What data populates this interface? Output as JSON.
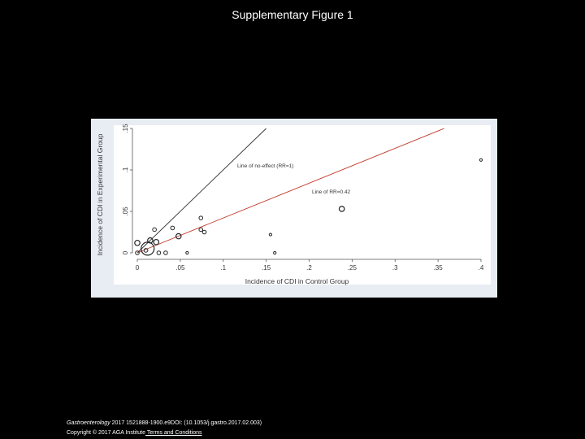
{
  "slide": {
    "title": "Supplementary Figure 1"
  },
  "footer": {
    "journal": "Gastroenterology",
    "citation": " 2017 1521888-1900.e9DOI: (10.1053/j.gastro.2017.02.003)",
    "copyright": "Copyright © 2017 AGA Institute",
    "link_label": " Terms and Conditions"
  },
  "colors": {
    "background": "#000000",
    "panel": "#e8edf3",
    "no_effect_line": "#333333",
    "rr_line": "#c0392b",
    "marker": "#222222"
  },
  "chart_data": {
    "type": "scatter",
    "title": "",
    "xlabel": "Incidence of CDI in Control Group",
    "ylabel": "Incidence of CDI in Experimental Group",
    "xlim": [
      0,
      0.4
    ],
    "ylim": [
      0,
      0.15
    ],
    "x_ticks": [
      0,
      0.05,
      0.1,
      0.15,
      0.2,
      0.25,
      0.3,
      0.35,
      0.4
    ],
    "x_tick_labels": [
      "0",
      ".05",
      ".1",
      ".15",
      ".2",
      ".25",
      ".3",
      ".35",
      ".4"
    ],
    "y_ticks": [
      0,
      0.05,
      0.1,
      0.15
    ],
    "y_tick_labels": [
      "0",
      ".05",
      ".1",
      ".15"
    ],
    "grid": false,
    "lines": [
      {
        "label": "Line of no-effect (RR=1)",
        "slope": 1,
        "x_end": 0.15
      },
      {
        "label": "Line of RR=0.42",
        "slope": 0.42,
        "x_end": 0.357
      }
    ],
    "points": [
      {
        "x": 0.0,
        "y": 0.012,
        "size": 3
      },
      {
        "x": 0.0,
        "y": 0.0,
        "size": 2
      },
      {
        "x": 0.01,
        "y": 0.003,
        "size": 2
      },
      {
        "x": 0.012,
        "y": 0.005,
        "size": 8
      },
      {
        "x": 0.015,
        "y": 0.015,
        "size": 3
      },
      {
        "x": 0.02,
        "y": 0.028,
        "size": 2
      },
      {
        "x": 0.022,
        "y": 0.013,
        "size": 3
      },
      {
        "x": 0.025,
        "y": 0.0,
        "size": 2
      },
      {
        "x": 0.033,
        "y": 0.0,
        "size": 2
      },
      {
        "x": 0.041,
        "y": 0.03,
        "size": 2
      },
      {
        "x": 0.048,
        "y": 0.02,
        "size": 3
      },
      {
        "x": 0.058,
        "y": 0.0,
        "size": 1
      },
      {
        "x": 0.074,
        "y": 0.042,
        "size": 2
      },
      {
        "x": 0.074,
        "y": 0.028,
        "size": 2
      },
      {
        "x": 0.078,
        "y": 0.025,
        "size": 2
      },
      {
        "x": 0.155,
        "y": 0.022,
        "size": 1
      },
      {
        "x": 0.16,
        "y": 0.0,
        "size": 1
      },
      {
        "x": 0.238,
        "y": 0.053,
        "size": 3
      },
      {
        "x": 0.4,
        "y": 0.112,
        "size": 1
      }
    ]
  }
}
